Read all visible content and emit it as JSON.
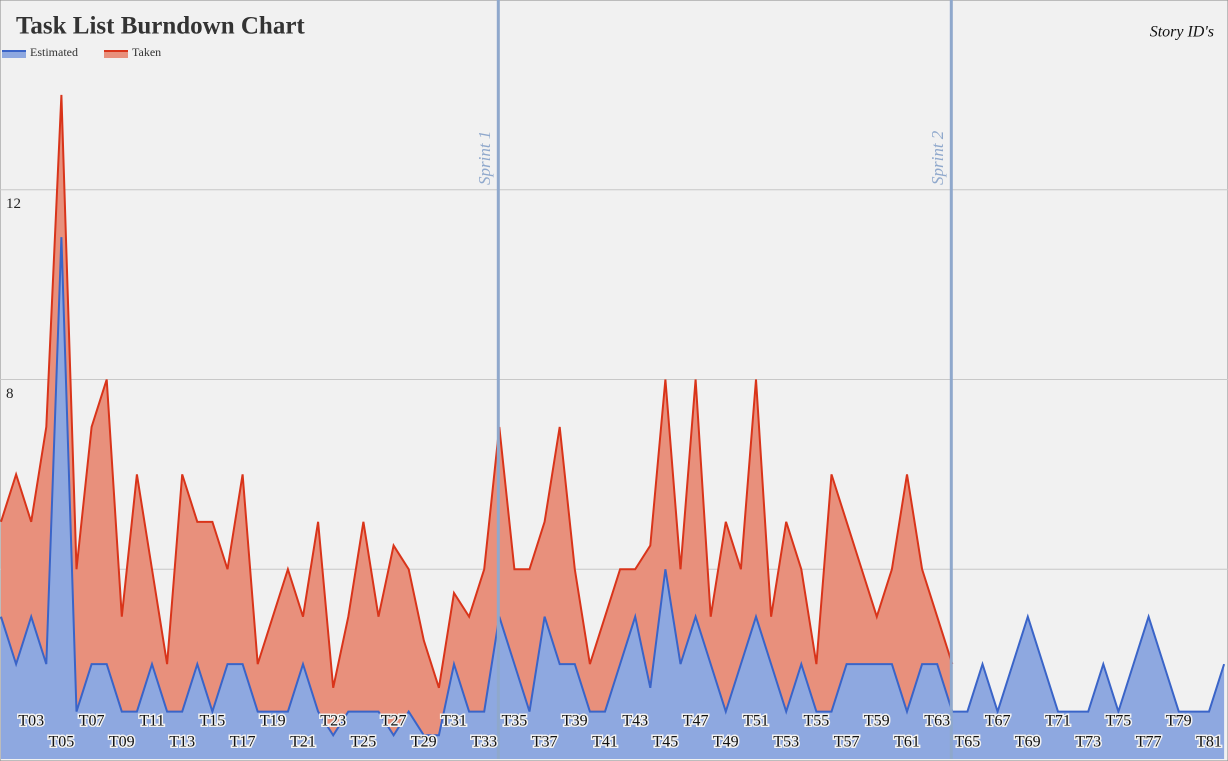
{
  "chart_data": {
    "type": "area",
    "title": "Task List Burndown Chart",
    "x_label": "Story ID's",
    "categories": [
      null,
      null,
      "T03",
      null,
      "T05",
      null,
      "T07",
      null,
      "T09",
      null,
      "T11",
      null,
      "T13",
      null,
      "T15",
      null,
      "T17",
      null,
      "T19",
      null,
      "T21",
      null,
      "T23",
      null,
      "T25",
      null,
      "T27",
      null,
      "T29",
      null,
      "T31",
      null,
      "T33",
      null,
      "T35",
      null,
      "T37",
      null,
      "T39",
      null,
      "T41",
      null,
      "T43",
      null,
      "T45",
      null,
      "T47",
      null,
      "T49",
      null,
      "T51",
      null,
      "T53",
      null,
      "T55",
      null,
      "T57",
      null,
      "T59",
      null,
      "T61",
      null,
      "T63",
      null,
      "T65",
      null,
      "T67",
      null,
      "T69",
      null,
      "T71",
      null,
      "T73",
      null,
      "T75",
      null,
      "T77",
      null,
      "T79",
      null,
      "T81",
      null
    ],
    "series": [
      {
        "name": "Taken",
        "color": "#d9341a",
        "fill": "#e8907c",
        "values": [
          5,
          6,
          5,
          7,
          14,
          4,
          7,
          8,
          3,
          6,
          4,
          2,
          6,
          5,
          5,
          4,
          6,
          2,
          3,
          4,
          3,
          5,
          1.5,
          3,
          5,
          3,
          4.5,
          4,
          2.5,
          1.5,
          3.5,
          3,
          4,
          7,
          4,
          4,
          5,
          7,
          4,
          2,
          3,
          4,
          4,
          4.5,
          8,
          4,
          8,
          3,
          5,
          4,
          8,
          3,
          5,
          4,
          2,
          6,
          5,
          4,
          3,
          4,
          6,
          4,
          3,
          2,
          null,
          null,
          null,
          null,
          null,
          null,
          null,
          null,
          null,
          null,
          null,
          null,
          null,
          null,
          null,
          null,
          null,
          null
        ]
      },
      {
        "name": "Estimated",
        "color": "#3a64c8",
        "fill": "#8ea8e0",
        "values": [
          3,
          2,
          3,
          2,
          11,
          1,
          2,
          2,
          1,
          1,
          2,
          1,
          1,
          2,
          1,
          2,
          2,
          1,
          1,
          1,
          2,
          1,
          0.5,
          1,
          1,
          1,
          0.5,
          1,
          0.5,
          0.5,
          2,
          1,
          1,
          3,
          2,
          1,
          3,
          2,
          2,
          1,
          1,
          2,
          3,
          1.5,
          4,
          2,
          3,
          2,
          1,
          2,
          3,
          2,
          1,
          2,
          1,
          1,
          2,
          2,
          2,
          2,
          1,
          2,
          2,
          1,
          1,
          2,
          1,
          2,
          3,
          2,
          1,
          1,
          1,
          2,
          1,
          2,
          3,
          2,
          1,
          1,
          1,
          2
        ]
      }
    ],
    "ylim": [
      0,
      16
    ],
    "yticks": [
      4,
      8,
      12
    ],
    "grid": true,
    "annotations": [
      {
        "text": "Sprint 1",
        "index": 33
      },
      {
        "text": "Sprint 2",
        "index": 63
      }
    ]
  }
}
